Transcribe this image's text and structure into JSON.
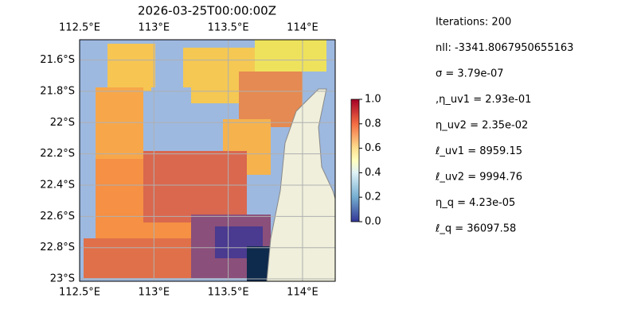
{
  "map": {
    "title": "2026-03-25T00:00:00Z",
    "lonlim": [
      112.5,
      114.22
    ],
    "latlim": [
      -23.015,
      -21.47
    ],
    "lon_ticks": [
      {
        "value": 112.5,
        "label": "112.5°E"
      },
      {
        "value": 113,
        "label": "113°E"
      },
      {
        "value": 113.5,
        "label": "113.5°E"
      },
      {
        "value": 114,
        "label": "114°E"
      }
    ],
    "lat_ticks": [
      {
        "value": -21.6,
        "label": "21.6°S"
      },
      {
        "value": -21.8,
        "label": "21.8°S"
      },
      {
        "value": -22,
        "label": "22°S"
      },
      {
        "value": -22.2,
        "label": "22.2°S"
      },
      {
        "value": -22.4,
        "label": "22.4°S"
      },
      {
        "value": -22.6,
        "label": "22.6°S"
      },
      {
        "value": -22.8,
        "label": "22.8°S"
      },
      {
        "value": -23,
        "label": "23°S"
      }
    ],
    "grid": true
  },
  "colorbar": {
    "lim": [
      0,
      1
    ],
    "ticks": [
      {
        "value": 0,
        "label": "0.0"
      },
      {
        "value": 0.2,
        "label": "0.2"
      },
      {
        "value": 0.4,
        "label": "0.4"
      },
      {
        "value": 0.6,
        "label": "0.6"
      },
      {
        "value": 0.8,
        "label": "0.8"
      },
      {
        "value": 1,
        "label": "1.0"
      }
    ]
  },
  "info": [
    "Iterations: 200",
    "nll: -3341.8067950655163",
    "σ = 3.79e-07",
    ",η_uv1 = 2.93e-01",
    "η_uv2 = 2.35e-02",
    "ℓ_uv1 = 8959.15",
    "ℓ_uv2 = 9994.76",
    "η_q = 4.23e-05",
    "ℓ_q = 36097.58"
  ]
}
